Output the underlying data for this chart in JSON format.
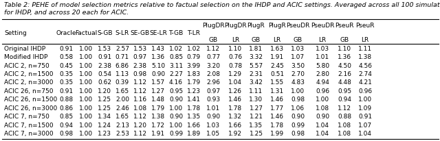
{
  "title_italic": "Table 2: PEHE of model selection metrics relative to factual selection on the IHDP and ACIC settings. Averaged across all 100 simulations",
  "title_line2": "for IHDP, and across 20 each for ACIC.",
  "col_headers_top": [
    "Setting",
    "Oracle",
    "Factual",
    "S-GB",
    "S-LR",
    "SE-GB",
    "SE-LR",
    "T-GB",
    "T-LR",
    "PlugDR",
    "PlugDR",
    "PlugR",
    "PlugR",
    "PseuDR",
    "PseuDR",
    "PseuR",
    "PseuR"
  ],
  "col_headers_bot": [
    "",
    "",
    "",
    "",
    "",
    "",
    "",
    "",
    "",
    "GB",
    "LR",
    "GB",
    "LR",
    "GB",
    "LR",
    "GB",
    "LR"
  ],
  "rows": [
    [
      "Original IHDP",
      "0.91",
      "1.00",
      "1.53",
      "2.57",
      "1.53",
      "1.43",
      "1.02",
      "1.02",
      "1.12",
      "1.10",
      "1.81",
      "1.63",
      "1.03",
      "1.03",
      "1.10",
      "1.11"
    ],
    [
      "Modified IHDP",
      "0.58",
      "1.00",
      "0.91",
      "0.71",
      "0.97",
      "1.36",
      "0.85",
      "0.79",
      "0.77",
      "0.76",
      "3.32",
      "1.91",
      "1.07",
      "1.01",
      "1.36",
      "1.38"
    ],
    [
      "ACIC 2, n=750",
      "0.45",
      "1.00",
      "2.38",
      "6.86",
      "2.38",
      "5.10",
      "3.11",
      "3.99",
      "3.20",
      "0.78",
      "5.57",
      "2.45",
      "3.50",
      "5.80",
      "4.50",
      "4.56"
    ],
    [
      "ACIC 2, n=1500",
      "0.35",
      "1.00",
      "0.54",
      "1.13",
      "0.98",
      "0.90",
      "2.27",
      "1.83",
      "2.08",
      "1.29",
      "2.31",
      "0.51",
      "2.70",
      "2.80",
      "2.16",
      "2.74"
    ],
    [
      "ACIC 2, n=3000",
      "0.35",
      "1.00",
      "0.62",
      "0.39",
      "1.12",
      "1.57",
      "4.16",
      "1.79",
      "2.96",
      "1.04",
      "3.42",
      "1.55",
      "4.83",
      "4.94",
      "4.48",
      "4.21"
    ],
    [
      "ACIC 26, n=750",
      "0.91",
      "1.00",
      "1.20",
      "1.65",
      "1.12",
      "1.27",
      "0.95",
      "1.23",
      "0.97",
      "1.26",
      "1.11",
      "1.31",
      "1.00",
      "0.96",
      "0.95",
      "0.96"
    ],
    [
      "ACIC 26, n=1500",
      "0.88",
      "1.00",
      "1.25",
      "2.00",
      "1.16",
      "1.48",
      "0.90",
      "1.41",
      "0.93",
      "1.46",
      "1.30",
      "1.46",
      "0.98",
      "1.00",
      "0.94",
      "1.00"
    ],
    [
      "ACIC 26, n=3000",
      "0.86",
      "1.00",
      "1.25",
      "2.46",
      "1.08",
      "1.79",
      "1.00",
      "1.78",
      "1.01",
      "1.78",
      "1.27",
      "1.77",
      "1.06",
      "1.08",
      "1.12",
      "1.09"
    ],
    [
      "ACIC 7, n=750",
      "0.85",
      "1.00",
      "1.34",
      "1.65",
      "1.12",
      "1.38",
      "0.90",
      "1.35",
      "0.90",
      "1.32",
      "1.21",
      "1.46",
      "0.90",
      "0.90",
      "0.88",
      "0.91"
    ],
    [
      "ACIC 7, n=1500",
      "0.94",
      "1.00",
      "1.24",
      "2.13",
      "1.20",
      "1.72",
      "1.00",
      "1.66",
      "1.03",
      "1.66",
      "1.35",
      "1.78",
      "0.99",
      "1.04",
      "1.08",
      "1.07"
    ],
    [
      "ACIC 7, n=3000",
      "0.98",
      "1.00",
      "1.23",
      "2.53",
      "1.12",
      "1.91",
      "0.99",
      "1.89",
      "1.05",
      "1.92",
      "1.25",
      "1.99",
      "0.98",
      "1.04",
      "1.08",
      "1.04"
    ]
  ],
  "font_size": 6.5,
  "title_font_size": 6.8
}
